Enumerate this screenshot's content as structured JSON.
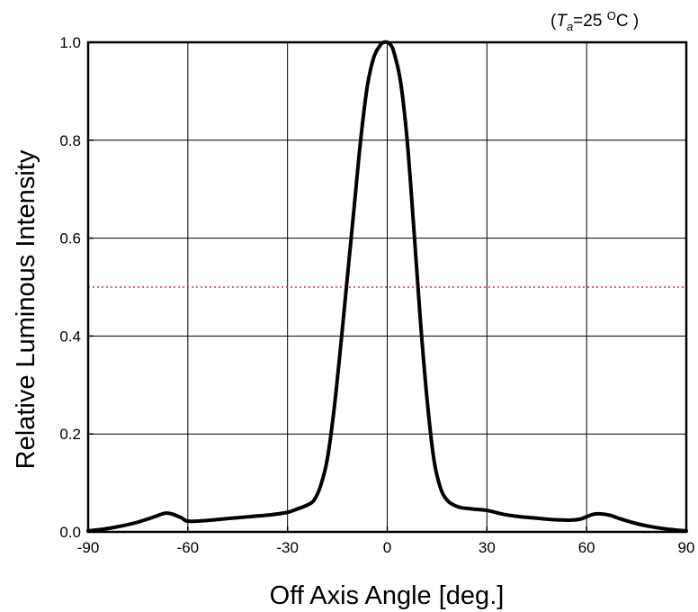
{
  "chart_data": {
    "type": "line",
    "annotation": {
      "prefix": "(",
      "var": "T",
      "sub": "a",
      "equals": "=25 ",
      "degree": "O",
      "unit": "C )"
    },
    "xlabel": "Off Axis Angle [deg.]",
    "ylabel": "Relative Luminous Intensity",
    "xlim": [
      -90,
      90
    ],
    "ylim": [
      0,
      1.0
    ],
    "xticks": [
      -90,
      -60,
      -30,
      0,
      30,
      60,
      90
    ],
    "xtick_labels": [
      "-90",
      "-60",
      "-30",
      "0",
      "30",
      "60",
      "90"
    ],
    "yticks": [
      0,
      0.2,
      0.4,
      0.6,
      0.8,
      1.0
    ],
    "ytick_labels": [
      "0.0",
      "0.2",
      "0.4",
      "0.6",
      "0.8",
      "1.0"
    ],
    "grid": true,
    "reference_line": {
      "y": 0.5,
      "style": "dotted",
      "color": "#e03030"
    },
    "series": [
      {
        "color": "#000000",
        "x": [
          -90,
          -85,
          -80,
          -75,
          -70,
          -67,
          -65,
          -62,
          -60,
          -55,
          -50,
          -45,
          -40,
          -35,
          -30,
          -27,
          -24,
          -22,
          -20,
          -18,
          -16,
          -14,
          -12,
          -10,
          -8,
          -6,
          -4,
          -2,
          -1,
          0,
          1,
          2,
          4,
          6,
          8,
          10,
          12,
          14,
          16,
          18,
          20,
          22,
          24,
          27,
          30,
          35,
          40,
          45,
          50,
          55,
          58,
          60,
          62,
          64,
          67,
          70,
          75,
          80,
          85,
          90
        ],
        "y": [
          0.002,
          0.006,
          0.012,
          0.02,
          0.031,
          0.038,
          0.037,
          0.029,
          0.022,
          0.023,
          0.026,
          0.029,
          0.032,
          0.035,
          0.04,
          0.047,
          0.055,
          0.065,
          0.095,
          0.15,
          0.25,
          0.38,
          0.52,
          0.66,
          0.8,
          0.91,
          0.97,
          0.995,
          1.0,
          1.0,
          0.995,
          0.98,
          0.92,
          0.8,
          0.62,
          0.43,
          0.27,
          0.15,
          0.09,
          0.065,
          0.055,
          0.05,
          0.048,
          0.046,
          0.044,
          0.036,
          0.031,
          0.028,
          0.025,
          0.024,
          0.026,
          0.031,
          0.036,
          0.037,
          0.034,
          0.027,
          0.017,
          0.01,
          0.005,
          0.002
        ]
      }
    ]
  }
}
